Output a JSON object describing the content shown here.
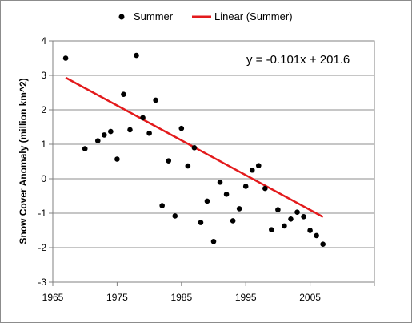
{
  "chart_data": {
    "type": "scatter",
    "title": "",
    "xlabel": "",
    "ylabel": "Snow Cover Anomaly (million km^2)",
    "xlim": [
      1965,
      2015
    ],
    "ylim": [
      -3,
      4
    ],
    "x_ticks": [
      "1965",
      "1975",
      "1985",
      "1995",
      "2005"
    ],
    "y_ticks": [
      "-3",
      "-2",
      "-1",
      "0",
      "1",
      "2",
      "3",
      "4"
    ],
    "grid": {
      "horizontal": true,
      "vertical": false
    },
    "legend_position": "top",
    "series": [
      {
        "name": "Summer",
        "color": "#000000",
        "marker": "circle",
        "points": [
          [
            1967,
            3.5
          ],
          [
            1970,
            0.87
          ],
          [
            1972,
            1.1
          ],
          [
            1973,
            1.27
          ],
          [
            1974,
            1.37
          ],
          [
            1975,
            0.57
          ],
          [
            1976,
            2.45
          ],
          [
            1977,
            1.42
          ],
          [
            1978,
            3.58
          ],
          [
            1979,
            1.77
          ],
          [
            1980,
            1.32
          ],
          [
            1981,
            2.28
          ],
          [
            1982,
            -0.78
          ],
          [
            1983,
            0.52
          ],
          [
            1984,
            -1.08
          ],
          [
            1985,
            1.46
          ],
          [
            1986,
            0.37
          ],
          [
            1987,
            0.9
          ],
          [
            1988,
            -1.27
          ],
          [
            1989,
            -0.65
          ],
          [
            1990,
            -1.82
          ],
          [
            1991,
            -0.1
          ],
          [
            1992,
            -0.45
          ],
          [
            1993,
            -1.22
          ],
          [
            1994,
            -0.87
          ],
          [
            1995,
            -0.22
          ],
          [
            1996,
            0.25
          ],
          [
            1997,
            0.38
          ],
          [
            1998,
            -0.28
          ],
          [
            1999,
            -1.48
          ],
          [
            2000,
            -0.9
          ],
          [
            2001,
            -1.37
          ],
          [
            2002,
            -1.17
          ],
          [
            2003,
            -0.97
          ],
          [
            2004,
            -1.1
          ],
          [
            2005,
            -1.5
          ],
          [
            2006,
            -1.65
          ],
          [
            2007,
            -1.9
          ]
        ]
      }
    ],
    "trendline": {
      "name": "Linear (Summer)",
      "color": "#e31a1c",
      "slope": -0.101,
      "intercept": 201.6,
      "x_range": [
        1967,
        2007
      ],
      "equation": "y = -0.101x + 201.6"
    }
  }
}
